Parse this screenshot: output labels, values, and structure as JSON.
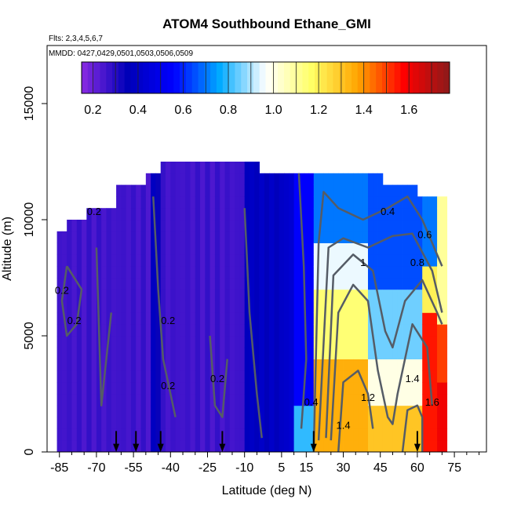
{
  "chart_data": {
    "type": "heatmap",
    "title": "ATOM4 Southbound Ethane_GMI",
    "subtitle_flights": "Flts: 2,3,4,5,6,7",
    "subtitle_dates": "MMDD: 0427,0429,0501,0503,0506,0509",
    "xlabel": "Latitude (deg N)",
    "ylabel": "Altitude (m)",
    "xlim": [
      -90,
      88
    ],
    "ylim": [
      0,
      17500
    ],
    "x_ticks": [
      -85,
      -70,
      -55,
      -40,
      -25,
      -10,
      5,
      15,
      30,
      45,
      60,
      75
    ],
    "y_ticks": [
      0,
      5000,
      10000,
      15000
    ],
    "colorbar": {
      "range": [
        0.15,
        1.78
      ],
      "ticks": [
        0.2,
        0.4,
        0.6,
        0.8,
        1.0,
        1.2,
        1.4,
        1.6
      ],
      "tick_labels": [
        "0.2",
        "0.4",
        "0.6",
        "0.8",
        "1.0",
        "1.2",
        "1.4",
        "1.6"
      ],
      "colors": [
        "#8a2be2",
        "#0000b8",
        "#0000ff",
        "#00aaff",
        "#ffffff",
        "#ffff66",
        "#ffa500",
        "#ff0000",
        "#8b1a1a"
      ]
    },
    "grid": false,
    "contour_labels": [
      {
        "text": "0.2",
        "x": -71,
        "y": 10200
      },
      {
        "text": "0.2",
        "x": -84,
        "y": 6800
      },
      {
        "text": "0.2",
        "x": -79,
        "y": 5500
      },
      {
        "text": "0.2",
        "x": -41,
        "y": 5500
      },
      {
        "text": "0.2",
        "x": -21,
        "y": 3000
      },
      {
        "text": "0.2",
        "x": -41,
        "y": 2700
      },
      {
        "text": "0.4",
        "x": 48,
        "y": 10200
      },
      {
        "text": "0.6",
        "x": 63,
        "y": 9200
      },
      {
        "text": "0.8",
        "x": 60,
        "y": 8000
      },
      {
        "text": "1",
        "x": 38,
        "y": 8000
      },
      {
        "text": "0.4",
        "x": 17,
        "y": 2000
      },
      {
        "text": "1.2",
        "x": 40,
        "y": 2200
      },
      {
        "text": "1.4",
        "x": 30,
        "y": 1000
      },
      {
        "text": "1.4",
        "x": 58,
        "y": 3000
      },
      {
        "text": "1.6",
        "x": 66,
        "y": 2000
      }
    ],
    "flight_markers_lat": [
      -62,
      -54,
      -44,
      -19,
      18,
      60
    ]
  }
}
